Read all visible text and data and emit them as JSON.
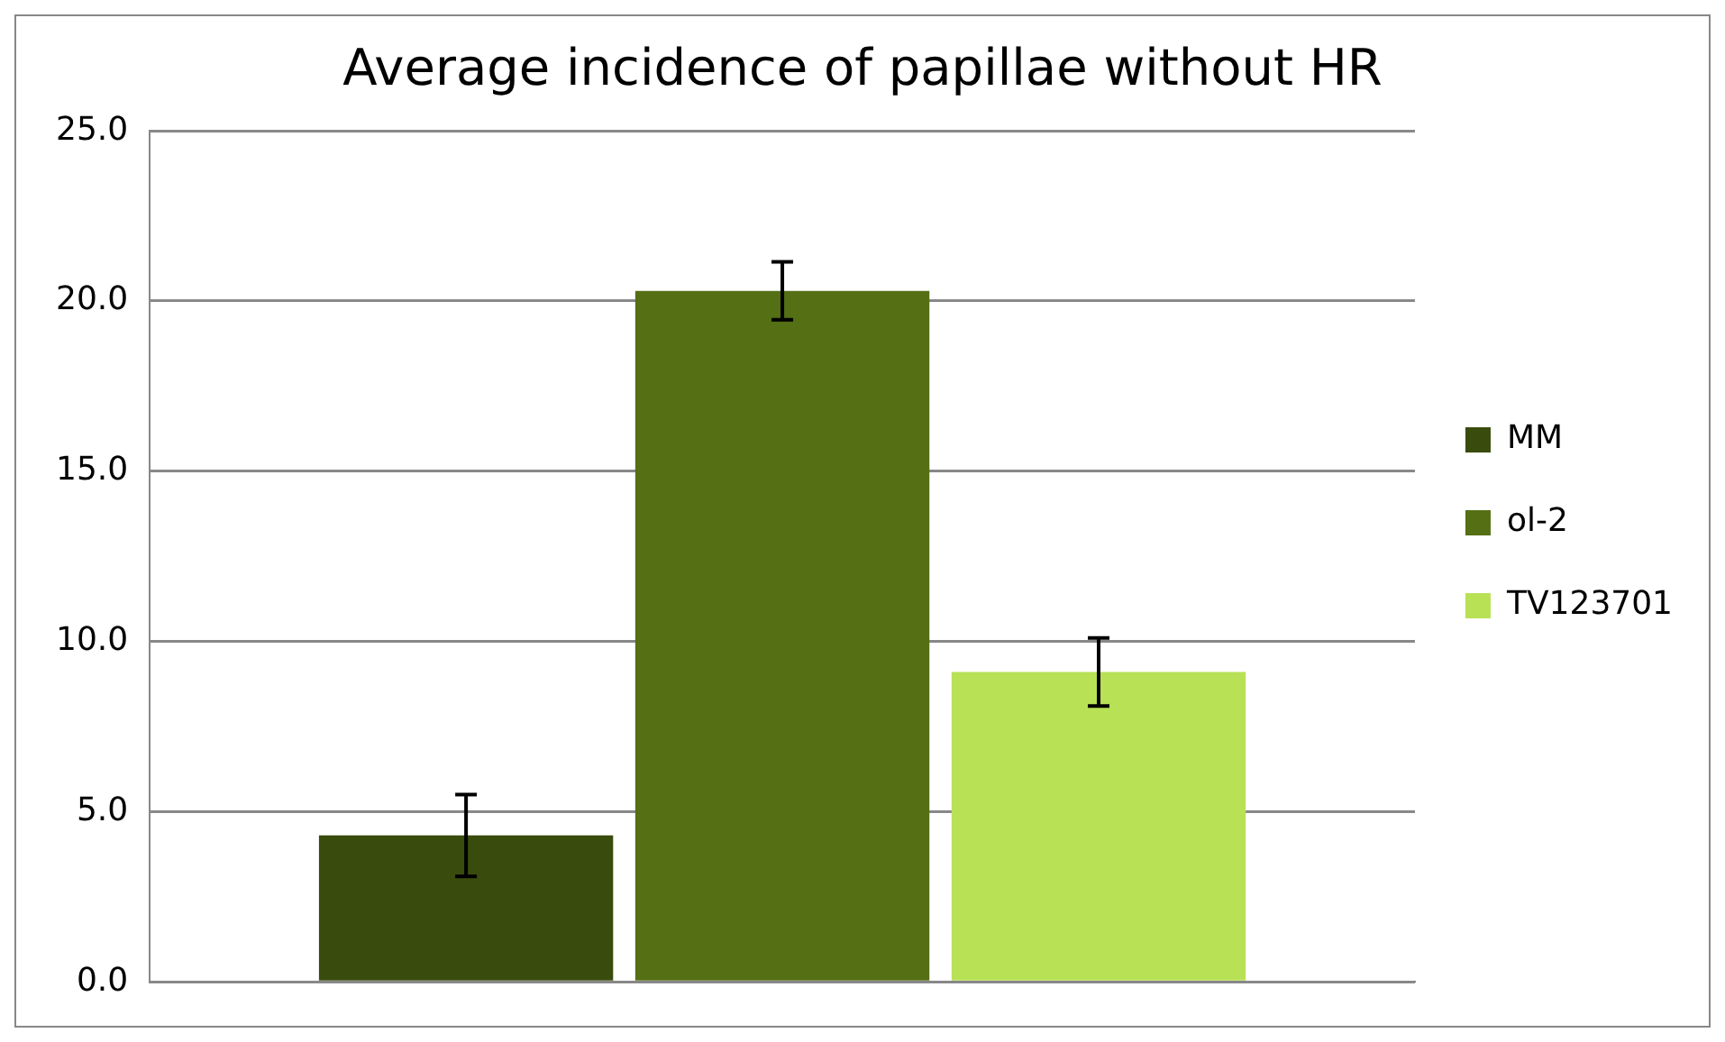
{
  "chart_data": {
    "type": "bar",
    "title": "Average incidence of papillae without HR",
    "categories": [
      null
    ],
    "series": [
      {
        "name": "MM",
        "color": "#3a4b0e",
        "values": [
          4.3
        ],
        "errors": [
          1.2
        ]
      },
      {
        "name": "ol-2",
        "color": "#556f14",
        "values": [
          20.3
        ],
        "errors": [
          0.85
        ]
      },
      {
        "name": "TV123701",
        "color": "#b8e156",
        "values": [
          9.1
        ],
        "errors": [
          1.0
        ]
      }
    ],
    "ylim": [
      0,
      25
    ],
    "yticks": [
      {
        "value": 0,
        "label": "0.0"
      },
      {
        "value": 5,
        "label": "5.0"
      },
      {
        "value": 10,
        "label": "10.0"
      },
      {
        "value": 15,
        "label": "15.0"
      },
      {
        "value": 20,
        "label": "20.0"
      },
      {
        "value": 25,
        "label": "25.0"
      }
    ],
    "grid": "y",
    "legend": "right"
  }
}
